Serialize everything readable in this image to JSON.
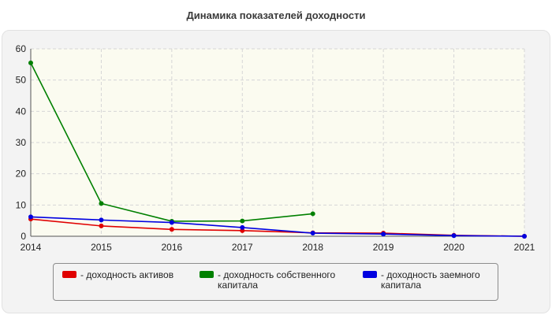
{
  "chart_data": {
    "type": "line",
    "title": "Динамика показателей доходности",
    "xlabel": "",
    "ylabel": "",
    "x": [
      "2014",
      "2015",
      "2016",
      "2017",
      "2018",
      "2019",
      "2020",
      "2021"
    ],
    "ylim": [
      0,
      60
    ],
    "yticks": [
      "0",
      "10",
      "20",
      "30",
      "40",
      "50",
      "60"
    ],
    "grid": true,
    "legend_position": "bottom",
    "series": [
      {
        "name": "- доходность активов",
        "color": "#e00000",
        "values": [
          5.5,
          3.3,
          2.2,
          1.8,
          1.1,
          1.0,
          0.3,
          0.0
        ]
      },
      {
        "name": "- доходность собственного капитала",
        "color": "#008000",
        "values": [
          55.5,
          10.5,
          4.8,
          4.9,
          7.2,
          null,
          null,
          null
        ]
      },
      {
        "name": "- доходность заемного капитала",
        "color": "#0000e0",
        "values": [
          6.2,
          5.2,
          4.4,
          2.8,
          1.0,
          0.7,
          0.2,
          0.0
        ]
      }
    ]
  }
}
